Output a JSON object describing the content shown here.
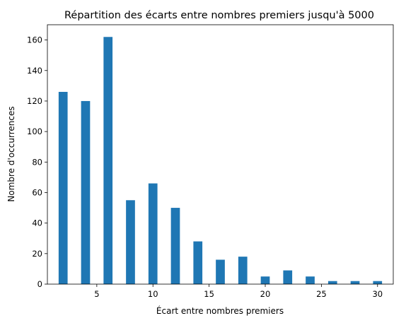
{
  "chart_data": {
    "type": "bar",
    "title": "Répartition des écarts entre nombres premiers jusqu'à 5000",
    "xlabel": "Écart entre nombres premiers",
    "ylabel": "Nombre d'occurrences",
    "x": [
      2,
      4,
      6,
      8,
      10,
      12,
      14,
      16,
      18,
      20,
      22,
      24,
      26,
      28,
      30
    ],
    "values": [
      126,
      120,
      162,
      55,
      66,
      50,
      28,
      16,
      18,
      5,
      9,
      5,
      2,
      2,
      2
    ],
    "xlim": [
      0.6,
      31.4
    ],
    "ylim": [
      0,
      170
    ],
    "xticks": [
      5,
      10,
      15,
      20,
      25,
      30
    ],
    "yticks": [
      0,
      20,
      40,
      60,
      80,
      100,
      120,
      140,
      160
    ],
    "bar_color": "#1f77b4",
    "grid": false,
    "legend": "none"
  }
}
